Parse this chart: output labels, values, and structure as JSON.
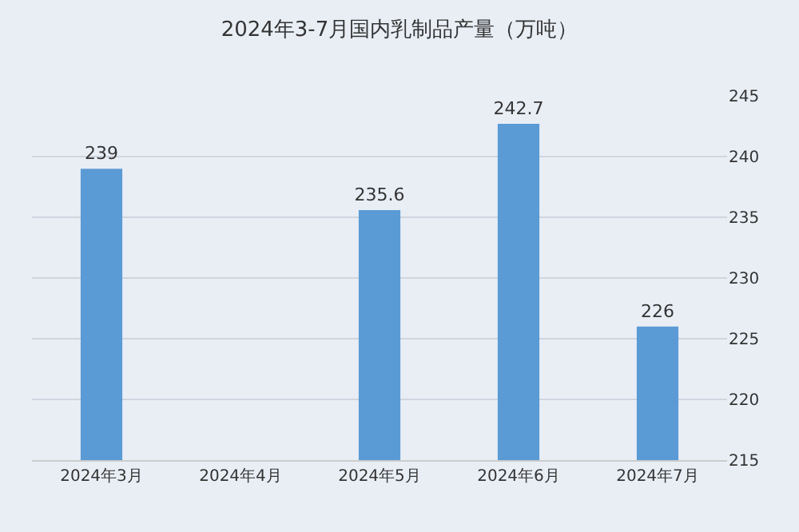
{
  "chart_data": {
    "type": "bar",
    "title": "2024年3-7月国内乳制品产量（万吨）",
    "categories": [
      "2024年3月",
      "2024年4月",
      "2024年5月",
      "2024年6月",
      "2024年7月"
    ],
    "values": [
      239,
      null,
      235.6,
      242.7,
      226
    ],
    "value_labels": [
      "239",
      null,
      "235.6",
      "242.7",
      "226"
    ],
    "color": "#5b9bd5",
    "ylim": [
      215,
      245
    ],
    "yticks": [
      215,
      220,
      225,
      230,
      235,
      240,
      245
    ],
    "grid": "y"
  }
}
